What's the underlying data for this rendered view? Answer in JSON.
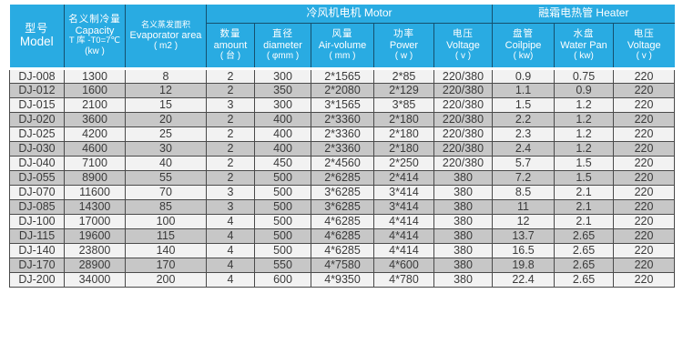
{
  "colors": {
    "header_bg": "#29abe2",
    "header_border": "#15506e",
    "header_text": "#ffffff",
    "row_light": "#f2f2f2",
    "row_dark": "#c7c7c7",
    "body_border": "#4a4a4a",
    "body_text": "#3a3a3a"
  },
  "table": {
    "groups": {
      "motor": "冷风机电机 Motor",
      "heater": "融霜电热管 Heater"
    },
    "header": {
      "model": {
        "zh": "型号",
        "en": "Model"
      },
      "capacity": {
        "zh": "名义制冷量",
        "en": "Capacity",
        "cond": "T 库 -T0=7℃",
        "unit": "(kw )"
      },
      "evaporator": {
        "zh": "名义蒸发面积",
        "en": "Evaporator area",
        "unit": "( m2 )"
      },
      "amount": {
        "zh": "数量",
        "en": "amount",
        "unit": "( 台 )"
      },
      "diameter": {
        "zh": "直径",
        "en": "diameter",
        "unit": "( φmm )"
      },
      "air_volume": {
        "zh": "风量",
        "en": "Air-volume",
        "unit": "( mm )"
      },
      "power": {
        "zh": "功率",
        "en": "Power",
        "unit": "( w )"
      },
      "voltage_motor": {
        "zh": "电压",
        "en": "Voltage",
        "unit": "( v )"
      },
      "coilpipe": {
        "zh": "盘管",
        "en": "Coilpipe",
        "unit": "( kw)"
      },
      "water_pan": {
        "zh": "水盘",
        "en": "Water Pan",
        "unit": "( kw)"
      },
      "voltage_heater": {
        "zh": "电压",
        "en": "Voltage",
        "unit": "( v )"
      }
    },
    "column_keys": [
      "model",
      "capacity",
      "evaporator-area",
      "amount",
      "diameter",
      "air-volume",
      "power",
      "voltage-motor",
      "coilpipe",
      "water-pan",
      "voltage-heater"
    ],
    "rows": [
      [
        "DJ-008",
        "1300",
        "8",
        "2",
        "300",
        "2*1565",
        "2*85",
        "220/380",
        "0.9",
        "0.75",
        "220"
      ],
      [
        "DJ-012",
        "1600",
        "12",
        "2",
        "350",
        "2*2080",
        "2*129",
        "220/380",
        "1.1",
        "0.9",
        "220"
      ],
      [
        "DJ-015",
        "2100",
        "15",
        "3",
        "300",
        "3*1565",
        "3*85",
        "220/380",
        "1.5",
        "1.2",
        "220"
      ],
      [
        "DJ-020",
        "3600",
        "20",
        "2",
        "400",
        "2*3360",
        "2*180",
        "220/380",
        "2.2",
        "1.2",
        "220"
      ],
      [
        "DJ-025",
        "4200",
        "25",
        "2",
        "400",
        "2*3360",
        "2*180",
        "220/380",
        "2.3",
        "1.2",
        "220"
      ],
      [
        "DJ-030",
        "4600",
        "30",
        "2",
        "400",
        "2*3360",
        "2*180",
        "220/380",
        "2.4",
        "1.2",
        "220"
      ],
      [
        "DJ-040",
        "7100",
        "40",
        "2",
        "450",
        "2*4560",
        "2*250",
        "220/380",
        "5.7",
        "1.5",
        "220"
      ],
      [
        "DJ-055",
        "8900",
        "55",
        "2",
        "500",
        "2*6285",
        "2*414",
        "380",
        "7.2",
        "1.5",
        "220"
      ],
      [
        "DJ-070",
        "11600",
        "70",
        "3",
        "500",
        "3*6285",
        "3*414",
        "380",
        "8.5",
        "2.1",
        "220"
      ],
      [
        "DJ-085",
        "14300",
        "85",
        "3",
        "500",
        "3*6285",
        "3*414",
        "380",
        "11",
        "2.1",
        "220"
      ],
      [
        "DJ-100",
        "17000",
        "100",
        "4",
        "500",
        "4*6285",
        "4*414",
        "380",
        "12",
        "2.1",
        "220"
      ],
      [
        "DJ-115",
        "19600",
        "115",
        "4",
        "500",
        "4*6285",
        "4*414",
        "380",
        "13.7",
        "2.65",
        "220"
      ],
      [
        "DJ-140",
        "23800",
        "140",
        "4",
        "500",
        "4*6285",
        "4*414",
        "380",
        "16.5",
        "2.65",
        "220"
      ],
      [
        "DJ-170",
        "28900",
        "170",
        "4",
        "550",
        "4*7580",
        "4*600",
        "380",
        "19.8",
        "2.65",
        "220"
      ],
      [
        "DJ-200",
        "34000",
        "200",
        "4",
        "600",
        "4*9350",
        "4*780",
        "380",
        "22.4",
        "2.65",
        "220"
      ]
    ]
  }
}
